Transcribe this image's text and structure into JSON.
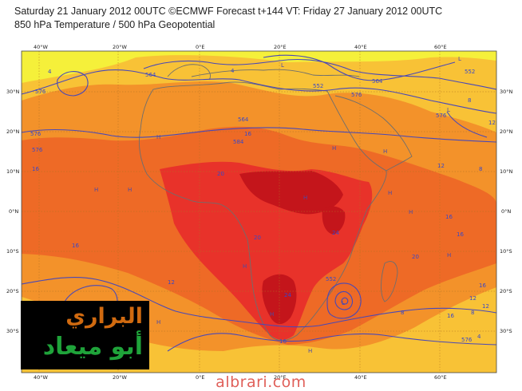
{
  "header": {
    "line1": "Saturday 21 January 2012 00UTC ©ECMWF Forecast t+144 VT: Friday 27 January 2012 00UTC",
    "line2": "850 hPa Temperature / 500 hPa Geopotential"
  },
  "map": {
    "projection": "cylindrical",
    "lon_range": [
      -45,
      70
    ],
    "lat_range": [
      -40,
      40
    ],
    "lon_labels": [
      "40°W",
      "20°W",
      "0°E",
      "20°E",
      "40°E",
      "60°E"
    ],
    "lat_labels": [
      "30°N",
      "20°N",
      "10°N",
      "0°N",
      "10°S",
      "20°S",
      "30°S"
    ],
    "temperature_palette": {
      "yellow": "#f5f03a",
      "light_orange": "#f8c236",
      "orange": "#f3922a",
      "dark_orange": "#ee6a26",
      "red": "#e8322a",
      "dark_red": "#c4151b"
    },
    "land_color": "#707070",
    "contour_color": "#4848b8",
    "geopotential_labels": [
      "576",
      "564",
      "576",
      "552",
      "564",
      "552",
      "576",
      "564",
      "576",
      "584",
      "576",
      "552",
      "576"
    ],
    "temperature_labels": [
      "4",
      "4",
      "8",
      "12",
      "16",
      "16",
      "20",
      "20",
      "24",
      "16",
      "12",
      "12",
      "16",
      "8",
      "16",
      "20",
      "16",
      "24",
      "12",
      "12",
      "8",
      "4",
      "8",
      "16",
      "16"
    ],
    "pressure_markers": [
      "H",
      "H",
      "H",
      "H",
      "H",
      "H",
      "H",
      "H",
      "H",
      "H",
      "H",
      "H",
      "H",
      "L",
      "L",
      "L",
      "L"
    ]
  },
  "logo": {
    "line1": "البراري",
    "line2": "أبو ميعاد"
  },
  "watermark": "albrari.com"
}
